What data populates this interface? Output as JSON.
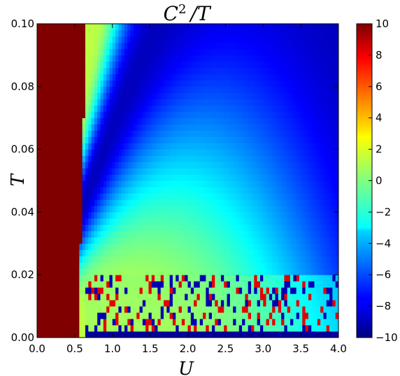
{
  "chart_data": {
    "type": "heatmap",
    "title": "C²/T",
    "title_base": "C",
    "title_sup": "2",
    "title_rest": "/T",
    "xlabel": "U",
    "ylabel": "T",
    "xlim": [
      0.0,
      4.0
    ],
    "ylim": [
      0.0,
      0.1
    ],
    "xticks": [
      "0.0",
      "0.5",
      "1.0",
      "1.5",
      "2.0",
      "2.5",
      "3.0",
      "3.5",
      "4.0"
    ],
    "yticks": [
      "0.00",
      "0.02",
      "0.04",
      "0.06",
      "0.08",
      "0.10"
    ],
    "colorbar": {
      "range": [
        -10,
        10
      ],
      "ticks": [
        "10",
        "8",
        "6",
        "4",
        "2",
        "0",
        "−2",
        "−4",
        "−6",
        "−8",
        "−10"
      ],
      "colormap": "jet"
    },
    "grid": false,
    "grid_resolution": {
      "nx": 100,
      "ny": 50
    },
    "description_of_field": "Red-saturated (value 10) region for U below ~0.6; fan of oscillating stripes radiating from origin; checkerboard noise at low T for U > 0.6; dark blue row near T = 0."
  },
  "colors": {
    "jet_low": "#00007f",
    "jet_mid": "#7fff7f",
    "jet_high": "#7f0000"
  }
}
